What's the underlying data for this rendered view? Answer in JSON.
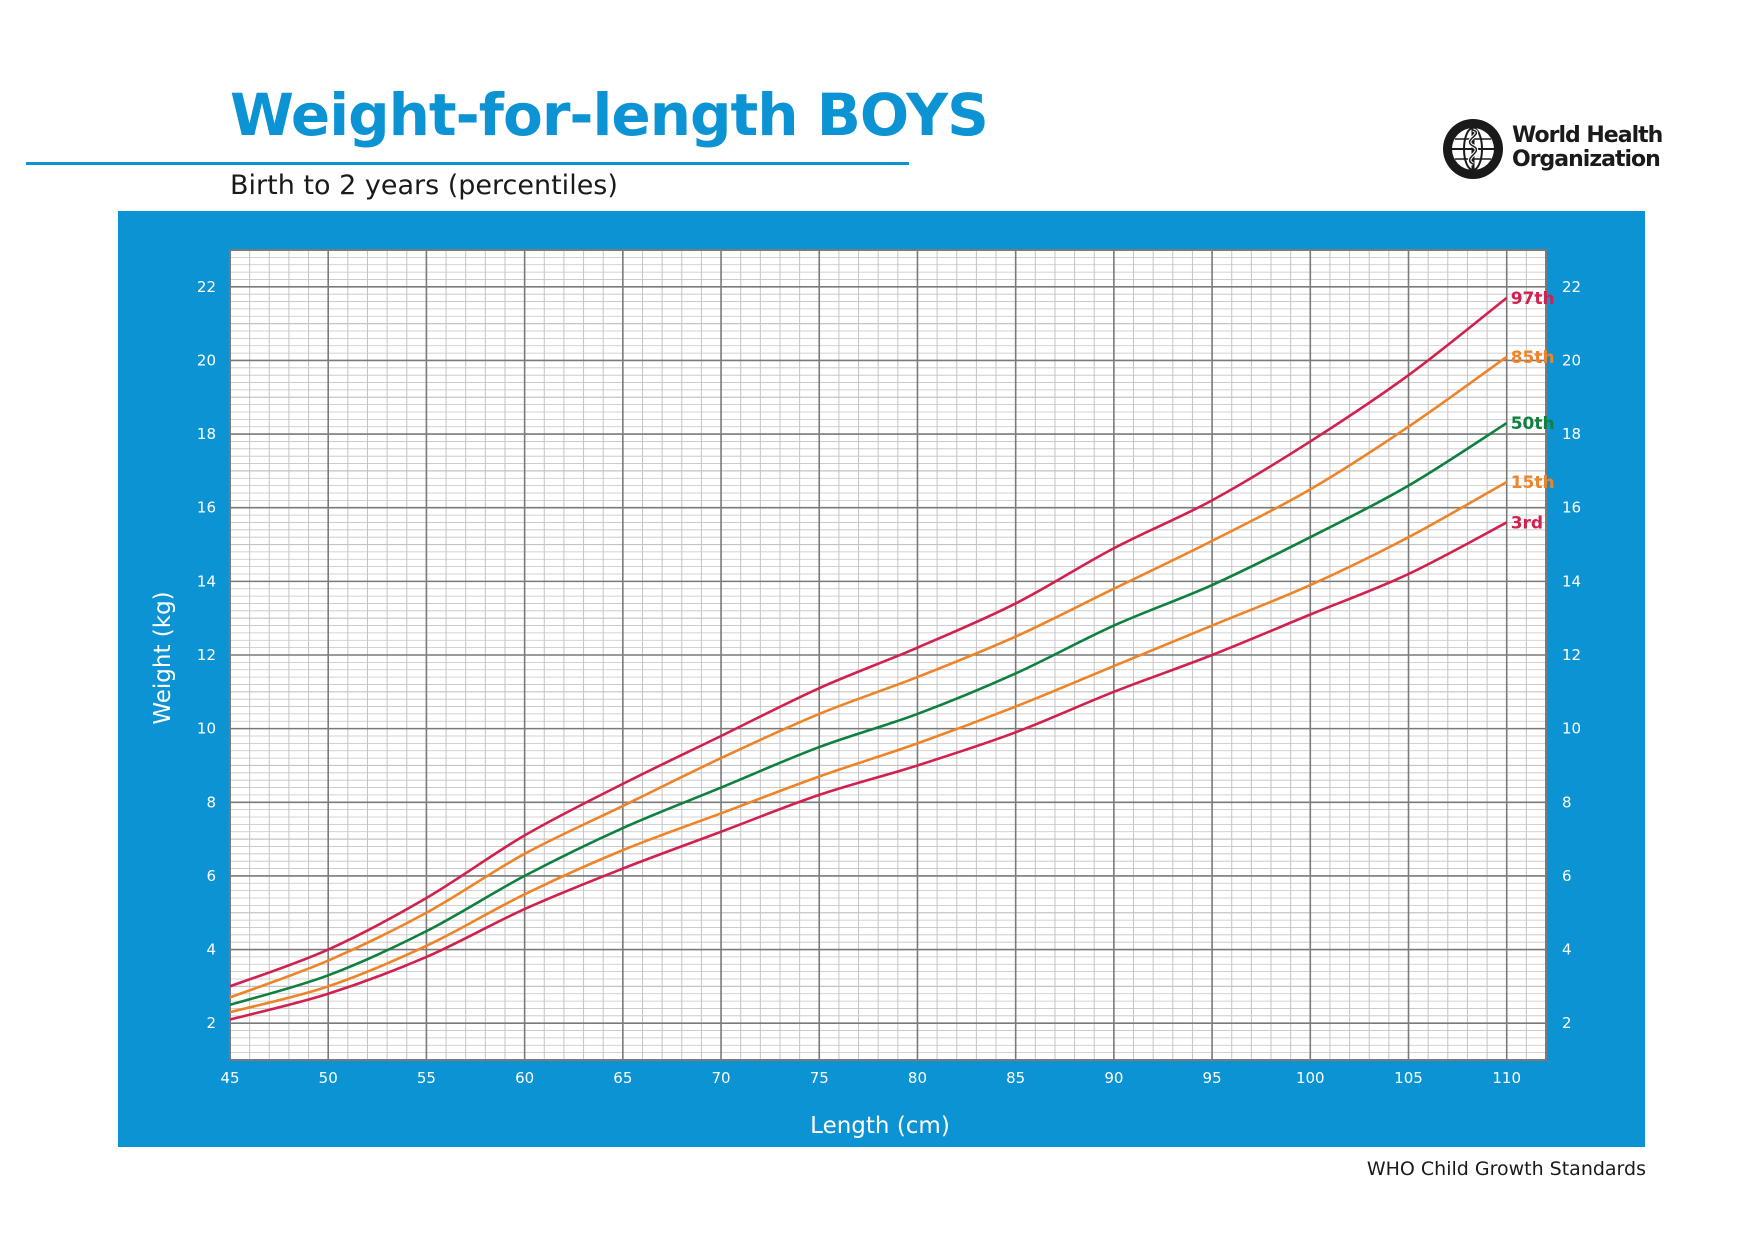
{
  "header": {
    "title": "Weight-for-length BOYS",
    "subtitle": "Birth to 2 years (percentiles)"
  },
  "logo": {
    "line1": "World Health",
    "line2": "Organization",
    "icon": "who-emblem-icon"
  },
  "footer": {
    "text": "WHO Child Growth Standards"
  },
  "colors": {
    "brand_blue": "#0c93d3",
    "grid_major": "#7a7a7a",
    "grid_minor": "#c4c4c4",
    "p97_p3": "#d0214f",
    "p85_p15": "#ee8429",
    "p50": "#0f8040"
  },
  "chart_data": {
    "type": "line",
    "xlabel": "Length (cm)",
    "ylabel": "Weight (kg)",
    "xlim": [
      45,
      112
    ],
    "ylim": [
      1,
      23
    ],
    "x_ticks": [
      45,
      50,
      55,
      60,
      65,
      70,
      75,
      80,
      85,
      90,
      95,
      100,
      105,
      110
    ],
    "y_ticks": [
      2,
      4,
      6,
      8,
      10,
      12,
      14,
      16,
      18,
      20,
      22
    ],
    "grid": true,
    "legend": "line-end labels",
    "x": [
      45,
      50,
      55,
      60,
      65,
      70,
      75,
      80,
      85,
      90,
      95,
      100,
      105,
      110
    ],
    "series": [
      {
        "name": "97th",
        "color": "#d0214f",
        "values": [
          3.0,
          4.0,
          5.4,
          7.1,
          8.5,
          9.8,
          11.1,
          12.2,
          13.4,
          14.9,
          16.2,
          17.8,
          19.6,
          21.7
        ]
      },
      {
        "name": "85th",
        "color": "#ee8429",
        "values": [
          2.7,
          3.7,
          5.0,
          6.6,
          7.9,
          9.2,
          10.4,
          11.4,
          12.5,
          13.8,
          15.1,
          16.5,
          18.2,
          20.1
        ]
      },
      {
        "name": "50th",
        "color": "#0f8040",
        "values": [
          2.5,
          3.3,
          4.5,
          6.0,
          7.3,
          8.4,
          9.5,
          10.4,
          11.5,
          12.8,
          13.9,
          15.2,
          16.6,
          18.3
        ]
      },
      {
        "name": "15th",
        "color": "#ee8429",
        "values": [
          2.3,
          3.0,
          4.1,
          5.5,
          6.7,
          7.7,
          8.7,
          9.6,
          10.6,
          11.7,
          12.8,
          13.9,
          15.2,
          16.7
        ]
      },
      {
        "name": "3rd",
        "color": "#d0214f",
        "values": [
          2.1,
          2.8,
          3.8,
          5.1,
          6.2,
          7.2,
          8.2,
          9.0,
          9.9,
          11.0,
          12.0,
          13.1,
          14.2,
          15.6
        ]
      }
    ]
  }
}
